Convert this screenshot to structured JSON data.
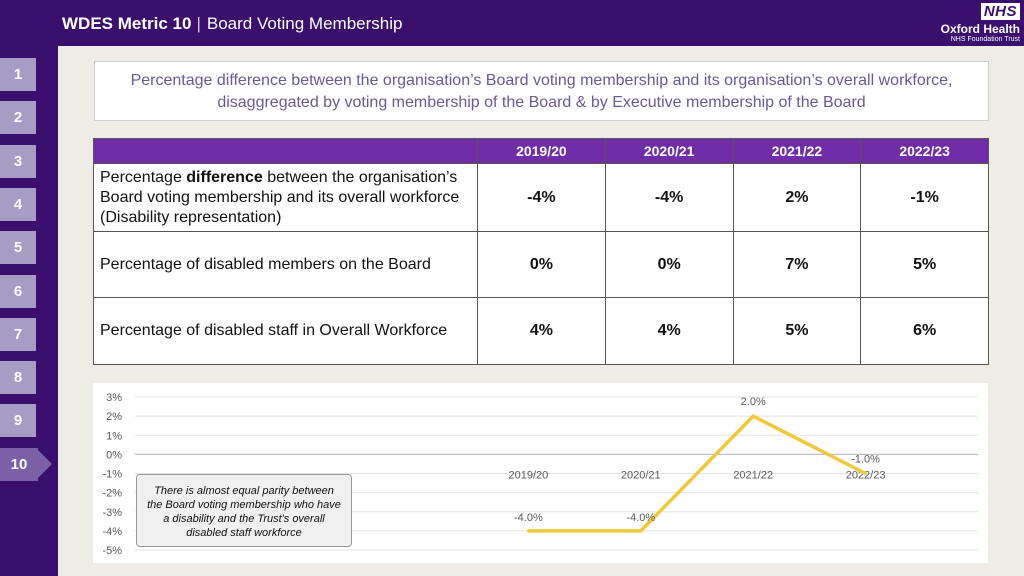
{
  "header": {
    "metric": "WDES Metric 10",
    "separator": "|",
    "title": "Board Voting Membership"
  },
  "logo": {
    "badge": "NHS",
    "name": "Oxford Health",
    "subname": "NHS Foundation Trust"
  },
  "sidebar": {
    "items": [
      "1",
      "2",
      "3",
      "4",
      "5",
      "6",
      "7",
      "8",
      "9",
      "10"
    ],
    "active": "10"
  },
  "subtitle": {
    "line1": "Percentage difference between the organisation’s Board voting membership and its organisation’s overall workforce,",
    "line2": "disaggregated by voting membership of the Board & by Executive membership of the Board"
  },
  "table": {
    "columns": [
      "2019/20",
      "2020/21",
      "2021/22",
      "2022/23"
    ],
    "rows": [
      {
        "label_pre": "Percentage ",
        "label_bold": "difference",
        "label_post": " between the organisation’s Board voting membership and its overall workforce (Disability representation)",
        "values": [
          "-4%",
          "-4%",
          "2%",
          "-1%"
        ]
      },
      {
        "label": "Percentage of disabled members on the Board",
        "values": [
          "0%",
          "0%",
          "7%",
          "5%"
        ]
      },
      {
        "label": "Percentage of disabled staff in Overall Workforce",
        "values": [
          "4%",
          "4%",
          "5%",
          "6%"
        ]
      }
    ]
  },
  "chart_data": {
    "type": "line",
    "categories": [
      "2019/20",
      "2020/21",
      "2021/22",
      "2022/23"
    ],
    "series": [
      {
        "values": [
          -4.0,
          -4.0,
          2.0,
          -1.0
        ],
        "color": "#f0c93a"
      }
    ],
    "data_labels": [
      "-4.0%",
      "-4.0%",
      "2.0%",
      "-1.0%"
    ],
    "ylim": [
      -5,
      3
    ],
    "yticks": [
      "3%",
      "2%",
      "1%",
      "0%",
      "-1%",
      "-2%",
      "-3%",
      "-4%",
      "-5%"
    ],
    "grid": true,
    "legend": "none"
  },
  "callout": {
    "text": "There is almost equal parity between the Board voting membership who have a disability and the Trust's overall disabled staff workforce"
  },
  "colors": {
    "brand_purple": "#3b0f6e",
    "table_header": "#6f2da8",
    "nav_inactive": "#a79cc3",
    "nav_active": "#7b61a8",
    "line": "#f0c93a"
  }
}
